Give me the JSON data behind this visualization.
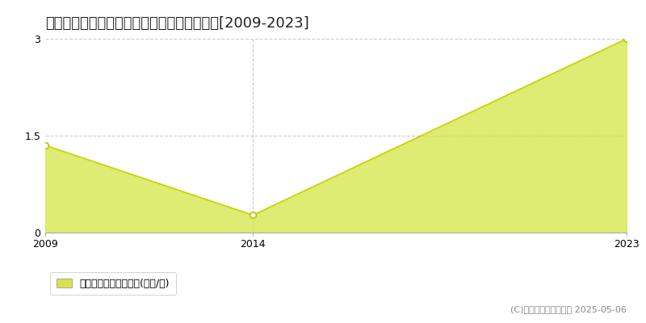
{
  "title": "中富良野町中富良野ベベルイ　住宅価格推移[2009-2023]",
  "years": [
    2009,
    2014,
    2023
  ],
  "values": [
    1.35,
    0.27,
    3.0
  ],
  "line_color": "#c8d400",
  "fill_color": "#d4e645",
  "fill_alpha": 0.75,
  "marker_color": "white",
  "marker_edge_color": "#b8c400",
  "ylim": [
    0,
    3.0
  ],
  "yticks": [
    0,
    1.5,
    3
  ],
  "ytick_labels": [
    "0",
    "1.5",
    "3"
  ],
  "xlim": [
    2009,
    2023
  ],
  "xticks": [
    2009,
    2014,
    2023
  ],
  "grid_color": "#cccccc",
  "grid_linestyle": "--",
  "bg_color": "#ffffff",
  "legend_label": "住宅価格　平均坤単価(万円/坤)",
  "copyright": "(C)土地価格ドットコム 2025-05-06",
  "title_fontsize": 13,
  "axis_fontsize": 9,
  "legend_fontsize": 9,
  "copyright_fontsize": 8
}
